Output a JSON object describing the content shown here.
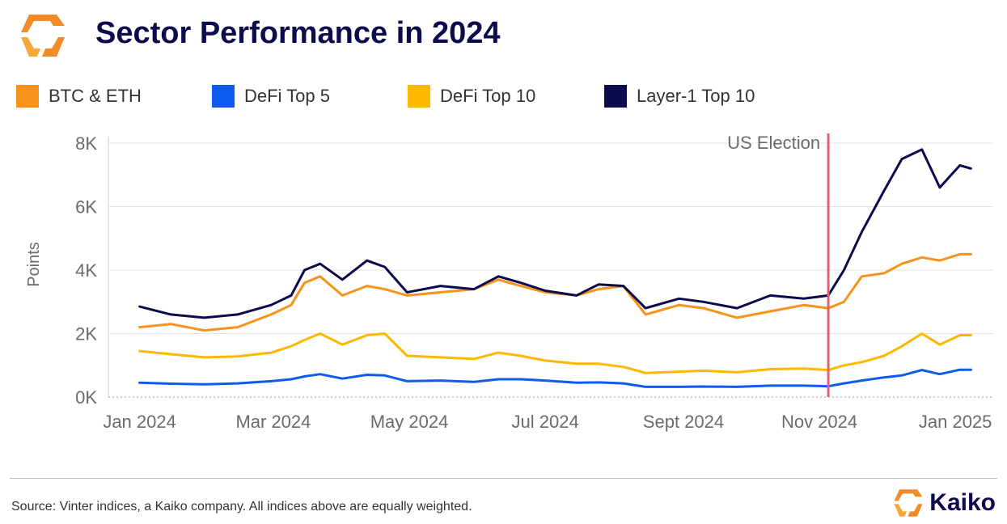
{
  "title": "Sector Performance in 2024",
  "source": "Source: Vinter indices, a Kaiko company. All indices above are equally weighted.",
  "brand": "Kaiko",
  "colors": {
    "brand_orange": "#F28C28",
    "title_navy": "#0B0B4D",
    "marker": "#E8606F"
  },
  "chart_data": {
    "type": "line",
    "title": "Sector Performance in 2024",
    "xlabel": "",
    "ylabel": "Points",
    "ylim": [
      0,
      8000
    ],
    "yticks": [
      0,
      2000,
      4000,
      6000,
      8000
    ],
    "ytick_labels": [
      "0K",
      "2K",
      "4K",
      "6K",
      "8K"
    ],
    "xlim": [
      "2023-12-18",
      "2025-01-18"
    ],
    "xticks": [
      "2024-01-01",
      "2024-03-01",
      "2024-05-01",
      "2024-07-01",
      "2024-09-01",
      "2024-11-01",
      "2025-01-01"
    ],
    "xtick_labels": [
      "Jan 2024",
      "Mar 2024",
      "May 2024",
      "Jul 2024",
      "Sept 2024",
      "Nov 2024",
      "Jan 2025"
    ],
    "legend_position": "top",
    "grid": "horizontal",
    "annotations": [
      {
        "date": "2024-11-05",
        "label": "US Election"
      }
    ],
    "dates": [
      "2024-01-01",
      "2024-01-15",
      "2024-01-30",
      "2024-02-14",
      "2024-02-29",
      "2024-03-09",
      "2024-03-15",
      "2024-03-22",
      "2024-04-01",
      "2024-04-12",
      "2024-04-20",
      "2024-04-30",
      "2024-05-15",
      "2024-05-30",
      "2024-06-10",
      "2024-06-20",
      "2024-07-01",
      "2024-07-15",
      "2024-07-25",
      "2024-08-05",
      "2024-08-15",
      "2024-08-30",
      "2024-09-10",
      "2024-09-25",
      "2024-10-10",
      "2024-10-25",
      "2024-11-05",
      "2024-11-12",
      "2024-11-20",
      "2024-11-30",
      "2024-12-08",
      "2024-12-17",
      "2024-12-25",
      "2025-01-03",
      "2025-01-08"
    ],
    "series": [
      {
        "name": "BTC & ETH",
        "color": "#F7931A",
        "values": [
          2200,
          2300,
          2100,
          2200,
          2600,
          2900,
          3600,
          3800,
          3200,
          3500,
          3400,
          3200,
          3300,
          3400,
          3700,
          3500,
          3300,
          3200,
          3400,
          3500,
          2600,
          2900,
          2800,
          2500,
          2700,
          2900,
          2800,
          3000,
          3800,
          3900,
          4200,
          4400,
          4300,
          4500,
          4500
        ]
      },
      {
        "name": "DeFi Top 5",
        "color": "#0E5BF0",
        "values": [
          450,
          420,
          400,
          430,
          500,
          560,
          650,
          720,
          580,
          700,
          680,
          500,
          520,
          480,
          560,
          560,
          520,
          450,
          460,
          430,
          320,
          320,
          330,
          320,
          360,
          360,
          340,
          430,
          520,
          620,
          680,
          850,
          720,
          860,
          860
        ]
      },
      {
        "name": "DeFi Top 10",
        "color": "#FFB800",
        "values": [
          1450,
          1350,
          1250,
          1280,
          1400,
          1600,
          1800,
          2000,
          1650,
          1950,
          2000,
          1300,
          1250,
          1200,
          1400,
          1300,
          1150,
          1050,
          1050,
          950,
          760,
          800,
          830,
          780,
          880,
          900,
          850,
          1000,
          1100,
          1300,
          1600,
          2000,
          1650,
          1950,
          1950
        ]
      },
      {
        "name": "Layer-1 Top 10",
        "color": "#0B0B4D",
        "values": [
          2850,
          2600,
          2500,
          2600,
          2900,
          3200,
          4000,
          4200,
          3700,
          4300,
          4100,
          3300,
          3500,
          3400,
          3800,
          3600,
          3350,
          3200,
          3550,
          3500,
          2800,
          3100,
          3000,
          2800,
          3200,
          3100,
          3200,
          4000,
          5200,
          6500,
          7500,
          7800,
          6600,
          7300,
          7200
        ]
      }
    ]
  }
}
